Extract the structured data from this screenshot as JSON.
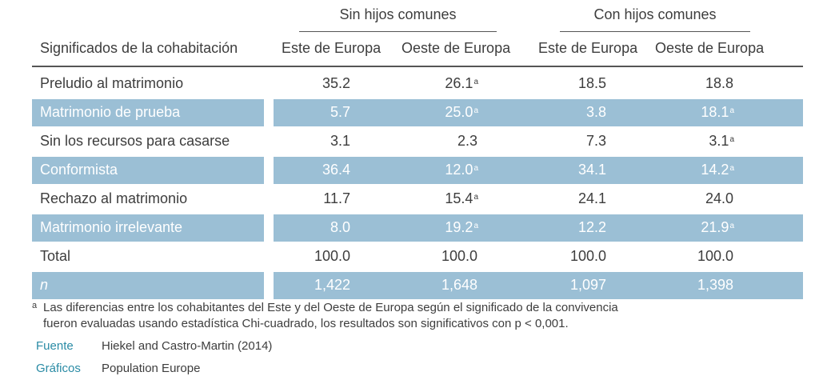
{
  "groups": {
    "without_children": "Sin hijos comunes",
    "with_children": "Con hijos comunes"
  },
  "columns": {
    "label": "Significados de la cohabitación",
    "c1": "Este de Europa",
    "c2": "Oeste de Europa",
    "c3": "Este de Europa",
    "c4": "Oeste de Europa"
  },
  "rows": [
    {
      "label": "Preludio al matrimonio",
      "c1": "35.2",
      "c2": "26.1",
      "c2_sup": "a",
      "c3": "18.5",
      "c4": "18.8",
      "c4_sup": ""
    },
    {
      "label": "Matrimonio de prueba",
      "c1": "5.7",
      "c2": "25.0",
      "c2_sup": "a",
      "c3": "3.8",
      "c4": "18.1",
      "c4_sup": "a"
    },
    {
      "label": "Sin los recursos para casarse",
      "c1": "3.1",
      "c2": "2.3",
      "c2_sup": "",
      "c3": "7.3",
      "c4": "3.1",
      "c4_sup": "a"
    },
    {
      "label": "Conformista",
      "c1": "36.4",
      "c2": "12.0",
      "c2_sup": "a",
      "c3": "34.1",
      "c4": "14.2",
      "c4_sup": "a"
    },
    {
      "label": "Rechazo al matrimonio",
      "c1": "11.7",
      "c2": "15.4",
      "c2_sup": "a",
      "c3": "24.1",
      "c4": "24.0",
      "c4_sup": ""
    },
    {
      "label": "Matrimonio irrelevante",
      "c1": "8.0",
      "c2": "19.2",
      "c2_sup": "a",
      "c3": "12.2",
      "c4": "21.9",
      "c4_sup": "a"
    },
    {
      "label": "Total",
      "c1": "100.0",
      "c2": "100.0",
      "c2_sup": "",
      "c3": "100.0",
      "c4": "100.0",
      "c4_sup": ""
    },
    {
      "label": "n",
      "c1": "1,422",
      "c2": "1,648",
      "c2_sup": "",
      "c3": "1,097",
      "c4": "1,398",
      "c4_sup": ""
    }
  ],
  "footnote": {
    "mark": "a",
    "text_line1": "Las diferencias entre los cohabitantes del Este y del Oeste de Europa según el significado de la convivencia",
    "text_line2": "fueron evaluadas usando estadística Chi-cuadrado, los resultados son significativos con p < 0,001."
  },
  "credits": {
    "source_key": "Fuente",
    "source_value": "Hiekel and Castro-Martin (2014)",
    "graphics_key": "Gráficos",
    "graphics_value": "Population Europe"
  },
  "colors": {
    "band": "#9bbfd5",
    "credit_key": "#2a8ba5",
    "text": "#3d3d3d"
  }
}
